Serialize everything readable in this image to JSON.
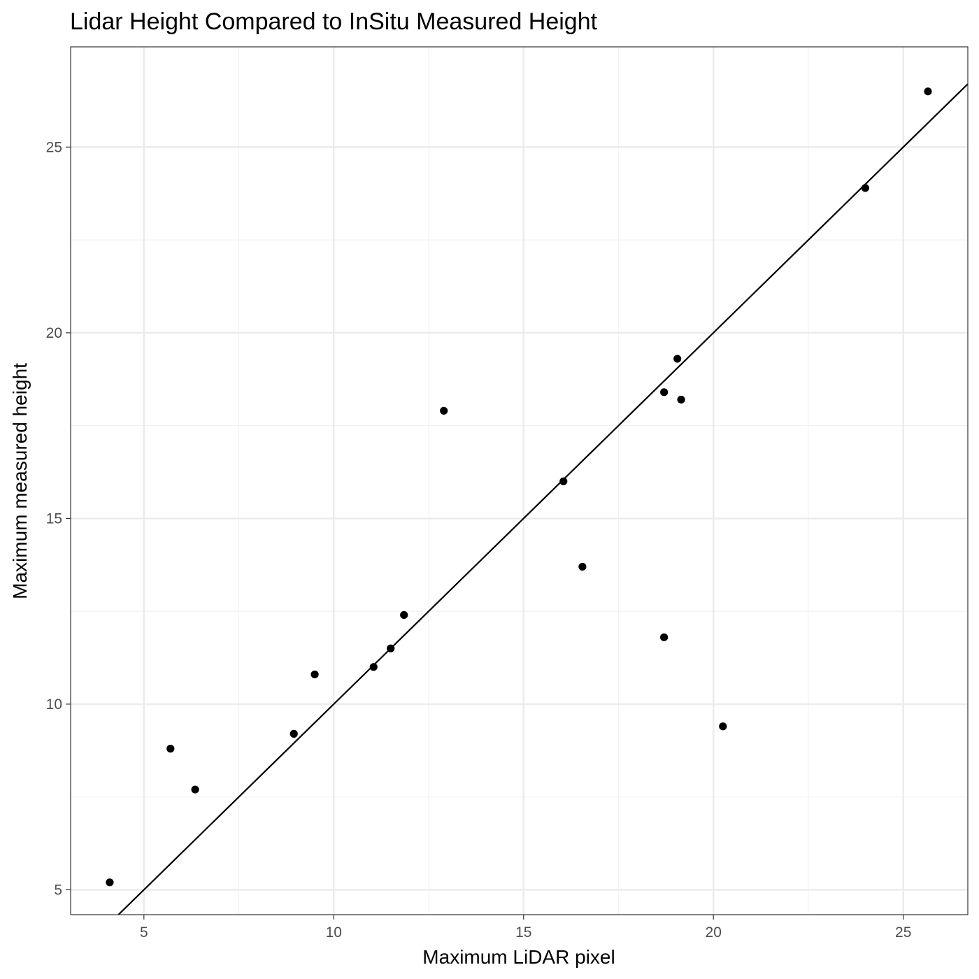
{
  "chart_data": {
    "type": "scatter",
    "title": "Lidar Height Compared to InSitu Measured Height",
    "xlabel": "Maximum LiDAR pixel",
    "ylabel": "Maximum measured height",
    "xlim": [
      3.07,
      26.7
    ],
    "ylim": [
      4.33,
      27.7
    ],
    "xticks": [
      5,
      10,
      15,
      20,
      25
    ],
    "yticks": [
      5,
      10,
      15,
      20,
      25
    ],
    "x_minor": [
      7.5,
      12.5,
      17.5,
      22.5
    ],
    "y_minor": [
      7.5,
      12.5,
      17.5,
      22.5
    ],
    "grid": true,
    "reference_line": {
      "slope": 1,
      "intercept": 0
    },
    "points": [
      {
        "x": 4.1,
        "y": 5.2
      },
      {
        "x": 5.7,
        "y": 8.8
      },
      {
        "x": 6.35,
        "y": 7.7
      },
      {
        "x": 8.95,
        "y": 9.2
      },
      {
        "x": 9.5,
        "y": 10.8
      },
      {
        "x": 11.05,
        "y": 11.0
      },
      {
        "x": 11.5,
        "y": 11.5
      },
      {
        "x": 11.85,
        "y": 12.4
      },
      {
        "x": 12.9,
        "y": 17.9
      },
      {
        "x": 16.05,
        "y": 16.0
      },
      {
        "x": 16.55,
        "y": 13.7
      },
      {
        "x": 18.7,
        "y": 18.4
      },
      {
        "x": 18.7,
        "y": 11.8
      },
      {
        "x": 19.05,
        "y": 19.3
      },
      {
        "x": 19.15,
        "y": 18.2
      },
      {
        "x": 20.25,
        "y": 9.4
      },
      {
        "x": 24.0,
        "y": 23.9
      },
      {
        "x": 25.65,
        "y": 26.5
      }
    ],
    "colors": {
      "point": "#000000",
      "line": "#000000",
      "grid_major": "#ebebeb",
      "grid_minor": "#f2f2f2",
      "panel_border": "#333333"
    }
  }
}
